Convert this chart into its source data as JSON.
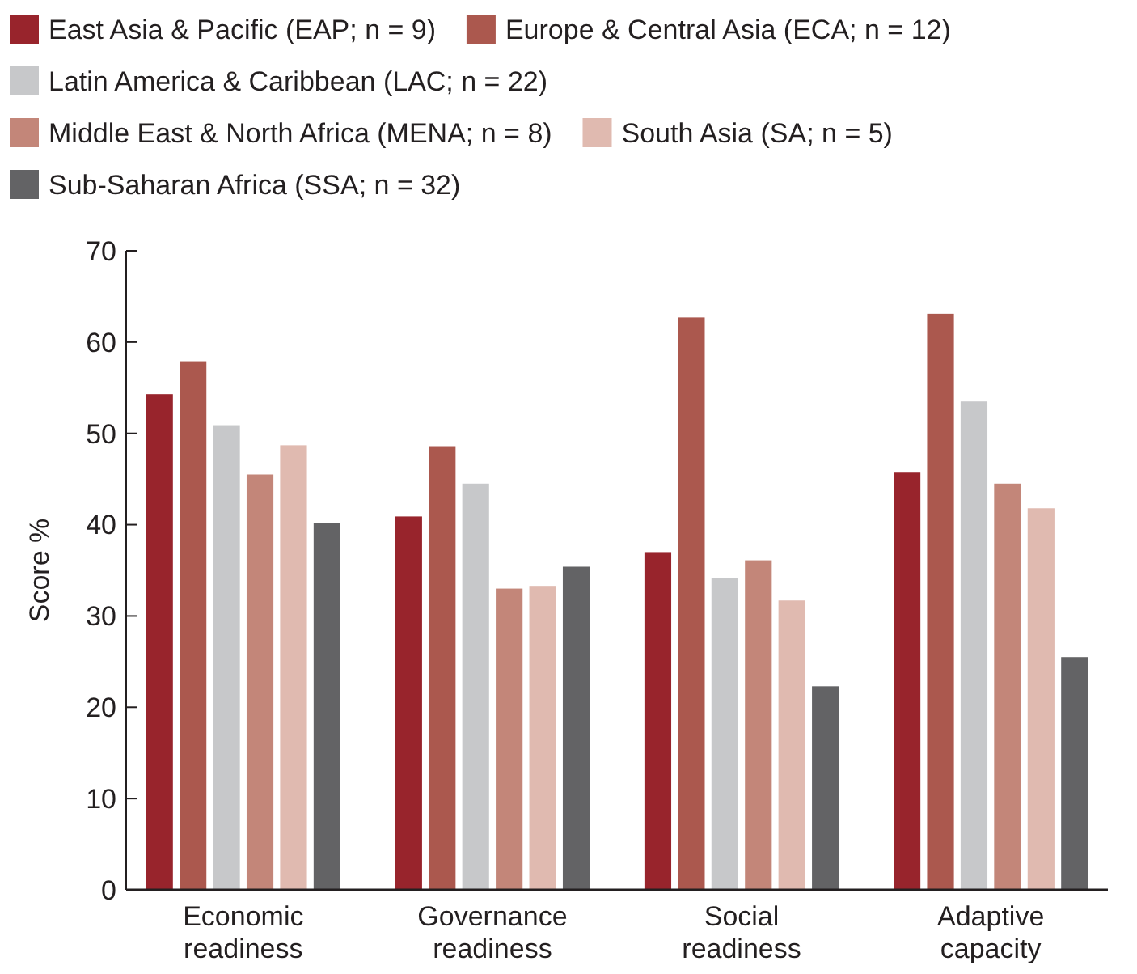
{
  "chart_data": {
    "type": "bar",
    "ylabel": "Score %",
    "categories": [
      "Economic readiness",
      "Governance readiness",
      "Social readiness",
      "Adaptive capacity"
    ],
    "ylim": [
      0,
      70
    ],
    "yticks": [
      0,
      10,
      20,
      30,
      40,
      50,
      60,
      70
    ],
    "grid": false,
    "legend": "top",
    "series": [
      {
        "name": "East Asia & Pacific (EAP; n = 9)",
        "color": "#98242c",
        "values": [
          54.3,
          40.9,
          37.0,
          45.7
        ]
      },
      {
        "name": "Europe & Central Asia (ECA; n = 12)",
        "color": "#ab584e",
        "values": [
          57.9,
          48.6,
          62.7,
          63.1
        ]
      },
      {
        "name": "Latin America & Caribbean (LAC; n = 22)",
        "color": "#c7c8ca",
        "values": [
          50.9,
          44.5,
          34.2,
          53.5
        ]
      },
      {
        "name": "Middle East & North Africa (MENA; n = 8)",
        "color": "#c38679",
        "values": [
          45.5,
          33.0,
          36.1,
          44.5
        ]
      },
      {
        "name": "South Asia (SA; n = 5)",
        "color": "#e0bab0",
        "values": [
          48.7,
          33.3,
          31.7,
          41.8
        ]
      },
      {
        "name": "Sub-Saharan Africa (SSA; n = 32)",
        "color": "#636365",
        "values": [
          40.2,
          35.4,
          22.3,
          25.5
        ]
      }
    ]
  }
}
